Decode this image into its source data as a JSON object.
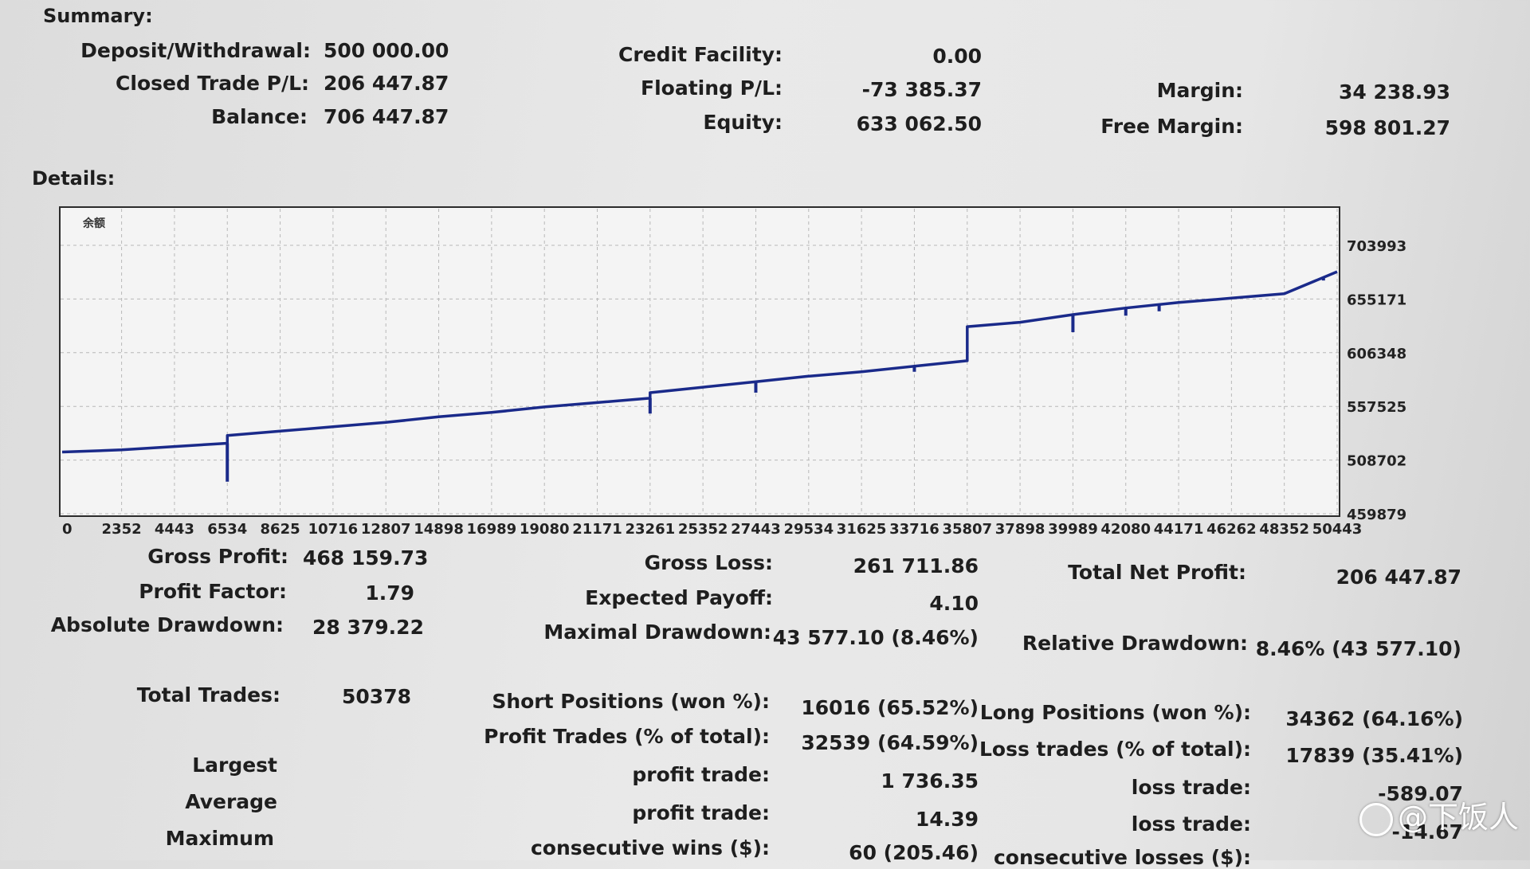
{
  "summary": {
    "header": "Summary:",
    "deposit_label": "Deposit/Withdrawal:",
    "deposit_value": "500 000.00",
    "closed_label": "Closed Trade P/L:",
    "closed_value": "206 447.87",
    "balance_label": "Balance:",
    "balance_value": "706 447.87",
    "credit_label": "Credit Facility:",
    "credit_value": "0.00",
    "floating_label": "Floating P/L:",
    "floating_value": "-73 385.37",
    "equity_label": "Equity:",
    "equity_value": "633 062.50",
    "margin_label": "Margin:",
    "margin_value": "34 238.93",
    "free_margin_label": "Free Margin:",
    "free_margin_value": "598 801.27"
  },
  "details": {
    "header": "Details:"
  },
  "chart_data": {
    "type": "line",
    "series_label": "余额",
    "x_ticks": [
      0,
      2352,
      4443,
      6534,
      8625,
      10716,
      12807,
      14898,
      16989,
      19080,
      21171,
      23261,
      25352,
      27443,
      29534,
      31625,
      33716,
      35807,
      37898,
      39989,
      42080,
      44171,
      46262,
      48352,
      50443
    ],
    "y_ticks": [
      703993,
      655171,
      606348,
      557525,
      508702,
      459879
    ],
    "xlim": [
      0,
      50443
    ],
    "ylim": [
      459879,
      703993
    ],
    "grid": true,
    "line_color": "#1a2a8a",
    "x": [
      0,
      2352,
      4443,
      6534,
      6535,
      8625,
      10716,
      12807,
      14898,
      16989,
      19080,
      21171,
      23261,
      23262,
      25352,
      27443,
      29534,
      31625,
      33716,
      35807,
      35808,
      37898,
      39989,
      42080,
      44171,
      46262,
      48352,
      50443
    ],
    "y": [
      516000,
      518000,
      521000,
      524000,
      531000,
      535000,
      539000,
      543000,
      548000,
      552000,
      557000,
      561000,
      565000,
      570000,
      575000,
      580000,
      585000,
      589000,
      594000,
      599000,
      630000,
      634000,
      641000,
      647000,
      652000,
      656000,
      660000,
      680000
    ],
    "drawdown_spikes": [
      {
        "x": 6534,
        "low": 489000
      },
      {
        "x": 23261,
        "low": 551000
      },
      {
        "x": 27443,
        "low": 570000
      },
      {
        "x": 33716,
        "low": 589000
      },
      {
        "x": 39989,
        "low": 625000
      },
      {
        "x": 42080,
        "low": 640000
      },
      {
        "x": 43400,
        "low": 644000
      },
      {
        "x": 49900,
        "low": 672000
      }
    ]
  },
  "stats": {
    "gross_profit_label": "Gross Profit:",
    "gross_profit_value": "468 159.73",
    "profit_factor_label": "Profit Factor:",
    "profit_factor_value": "1.79",
    "abs_dd_label": "Absolute Drawdown:",
    "abs_dd_value": "28 379.22",
    "gross_loss_label": "Gross Loss:",
    "gross_loss_value": "261 711.86",
    "expected_label": "Expected Payoff:",
    "expected_value": "4.10",
    "max_dd_label": "Maximal Drawdown:",
    "max_dd_value": "43 577.10 (8.46%)",
    "net_label": "Total Net Profit:",
    "net_value": "206 447.87",
    "rel_dd_label": "Relative Drawdown:",
    "rel_dd_value": "8.46% (43 577.10)",
    "total_trades_label": "Total Trades:",
    "total_trades_value": "50378",
    "short_label": "Short Positions (won %):",
    "short_value": "16016 (65.52%)",
    "long_label": "Long Positions (won %):",
    "long_value": "34362 (64.16%)",
    "profit_trades_label": "Profit Trades (% of total):",
    "profit_trades_value": "32539 (64.59%)",
    "loss_trades_label": "Loss trades (% of total):",
    "loss_trades_value": "17839 (35.41%)",
    "largest_label": "Largest",
    "largest_profit_label": "profit trade:",
    "largest_profit_value": "1 736.35",
    "largest_loss_label": "loss trade:",
    "largest_loss_value": "-589.07",
    "average_label": "Average",
    "average_profit_label": "profit trade:",
    "average_profit_value": "14.39",
    "average_loss_label": "loss trade:",
    "average_loss_value": "-14.67",
    "maximum_label": "Maximum",
    "cons_wins_label": "consecutive wins ($):",
    "cons_wins_value": "60 (205.46)",
    "cons_losses_label": "consecutive losses ($):"
  },
  "watermark": {
    "text": "@下饭人"
  }
}
